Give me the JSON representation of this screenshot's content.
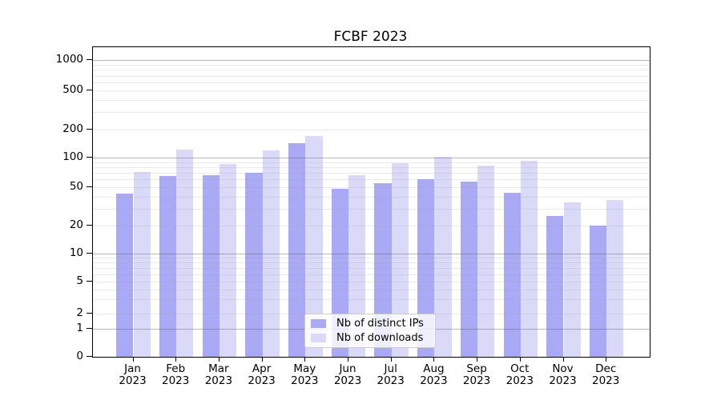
{
  "title": "FCBF 2023",
  "colors": {
    "distinct_ips": "#a9a9f5",
    "downloads": "#dadaf8",
    "axis": "#000000",
    "legend_border": "#cccccc",
    "grid_major": "#9a9aa4",
    "grid_minor": "#dcdce2"
  },
  "legend": {
    "items": [
      {
        "label": "Nb of distinct IPs",
        "color_key": "distinct_ips"
      },
      {
        "label": "Nb of downloads",
        "color_key": "downloads"
      }
    ]
  },
  "y_axis": {
    "tick_values": [
      0,
      1,
      2,
      5,
      10,
      20,
      50,
      100,
      200,
      500,
      1000
    ],
    "tick_labels": [
      "0",
      "1",
      "2",
      "5",
      "10",
      "20",
      "50",
      "100",
      "200",
      "500",
      "1000"
    ]
  },
  "x_axis": {
    "months": [
      "Jan",
      "Feb",
      "Mar",
      "Apr",
      "May",
      "Jun",
      "Jul",
      "Aug",
      "Sep",
      "Oct",
      "Nov",
      "Dec"
    ],
    "year": "2023"
  },
  "chart_data": {
    "type": "bar",
    "title": "FCBF 2023",
    "categories": [
      "Jan 2023",
      "Feb 2023",
      "Mar 2023",
      "Apr 2023",
      "May 2023",
      "Jun 2023",
      "Jul 2023",
      "Aug 2023",
      "Sep 2023",
      "Oct 2023",
      "Nov 2023",
      "Dec 2023"
    ],
    "series": [
      {
        "name": "Nb of distinct IPs",
        "values": [
          43,
          65,
          66,
          70,
          143,
          48,
          55,
          60,
          57,
          44,
          25,
          20
        ]
      },
      {
        "name": "Nb of downloads",
        "values": [
          71,
          123,
          86,
          119,
          172,
          66,
          87,
          103,
          83,
          93,
          35,
          37
        ]
      }
    ],
    "yscale": "symlog",
    "y_ticks": [
      0,
      1,
      2,
      5,
      10,
      20,
      50,
      100,
      200,
      500,
      1000
    ],
    "grid": true,
    "legend_position": "lower center",
    "xlabel": "",
    "ylabel": ""
  }
}
